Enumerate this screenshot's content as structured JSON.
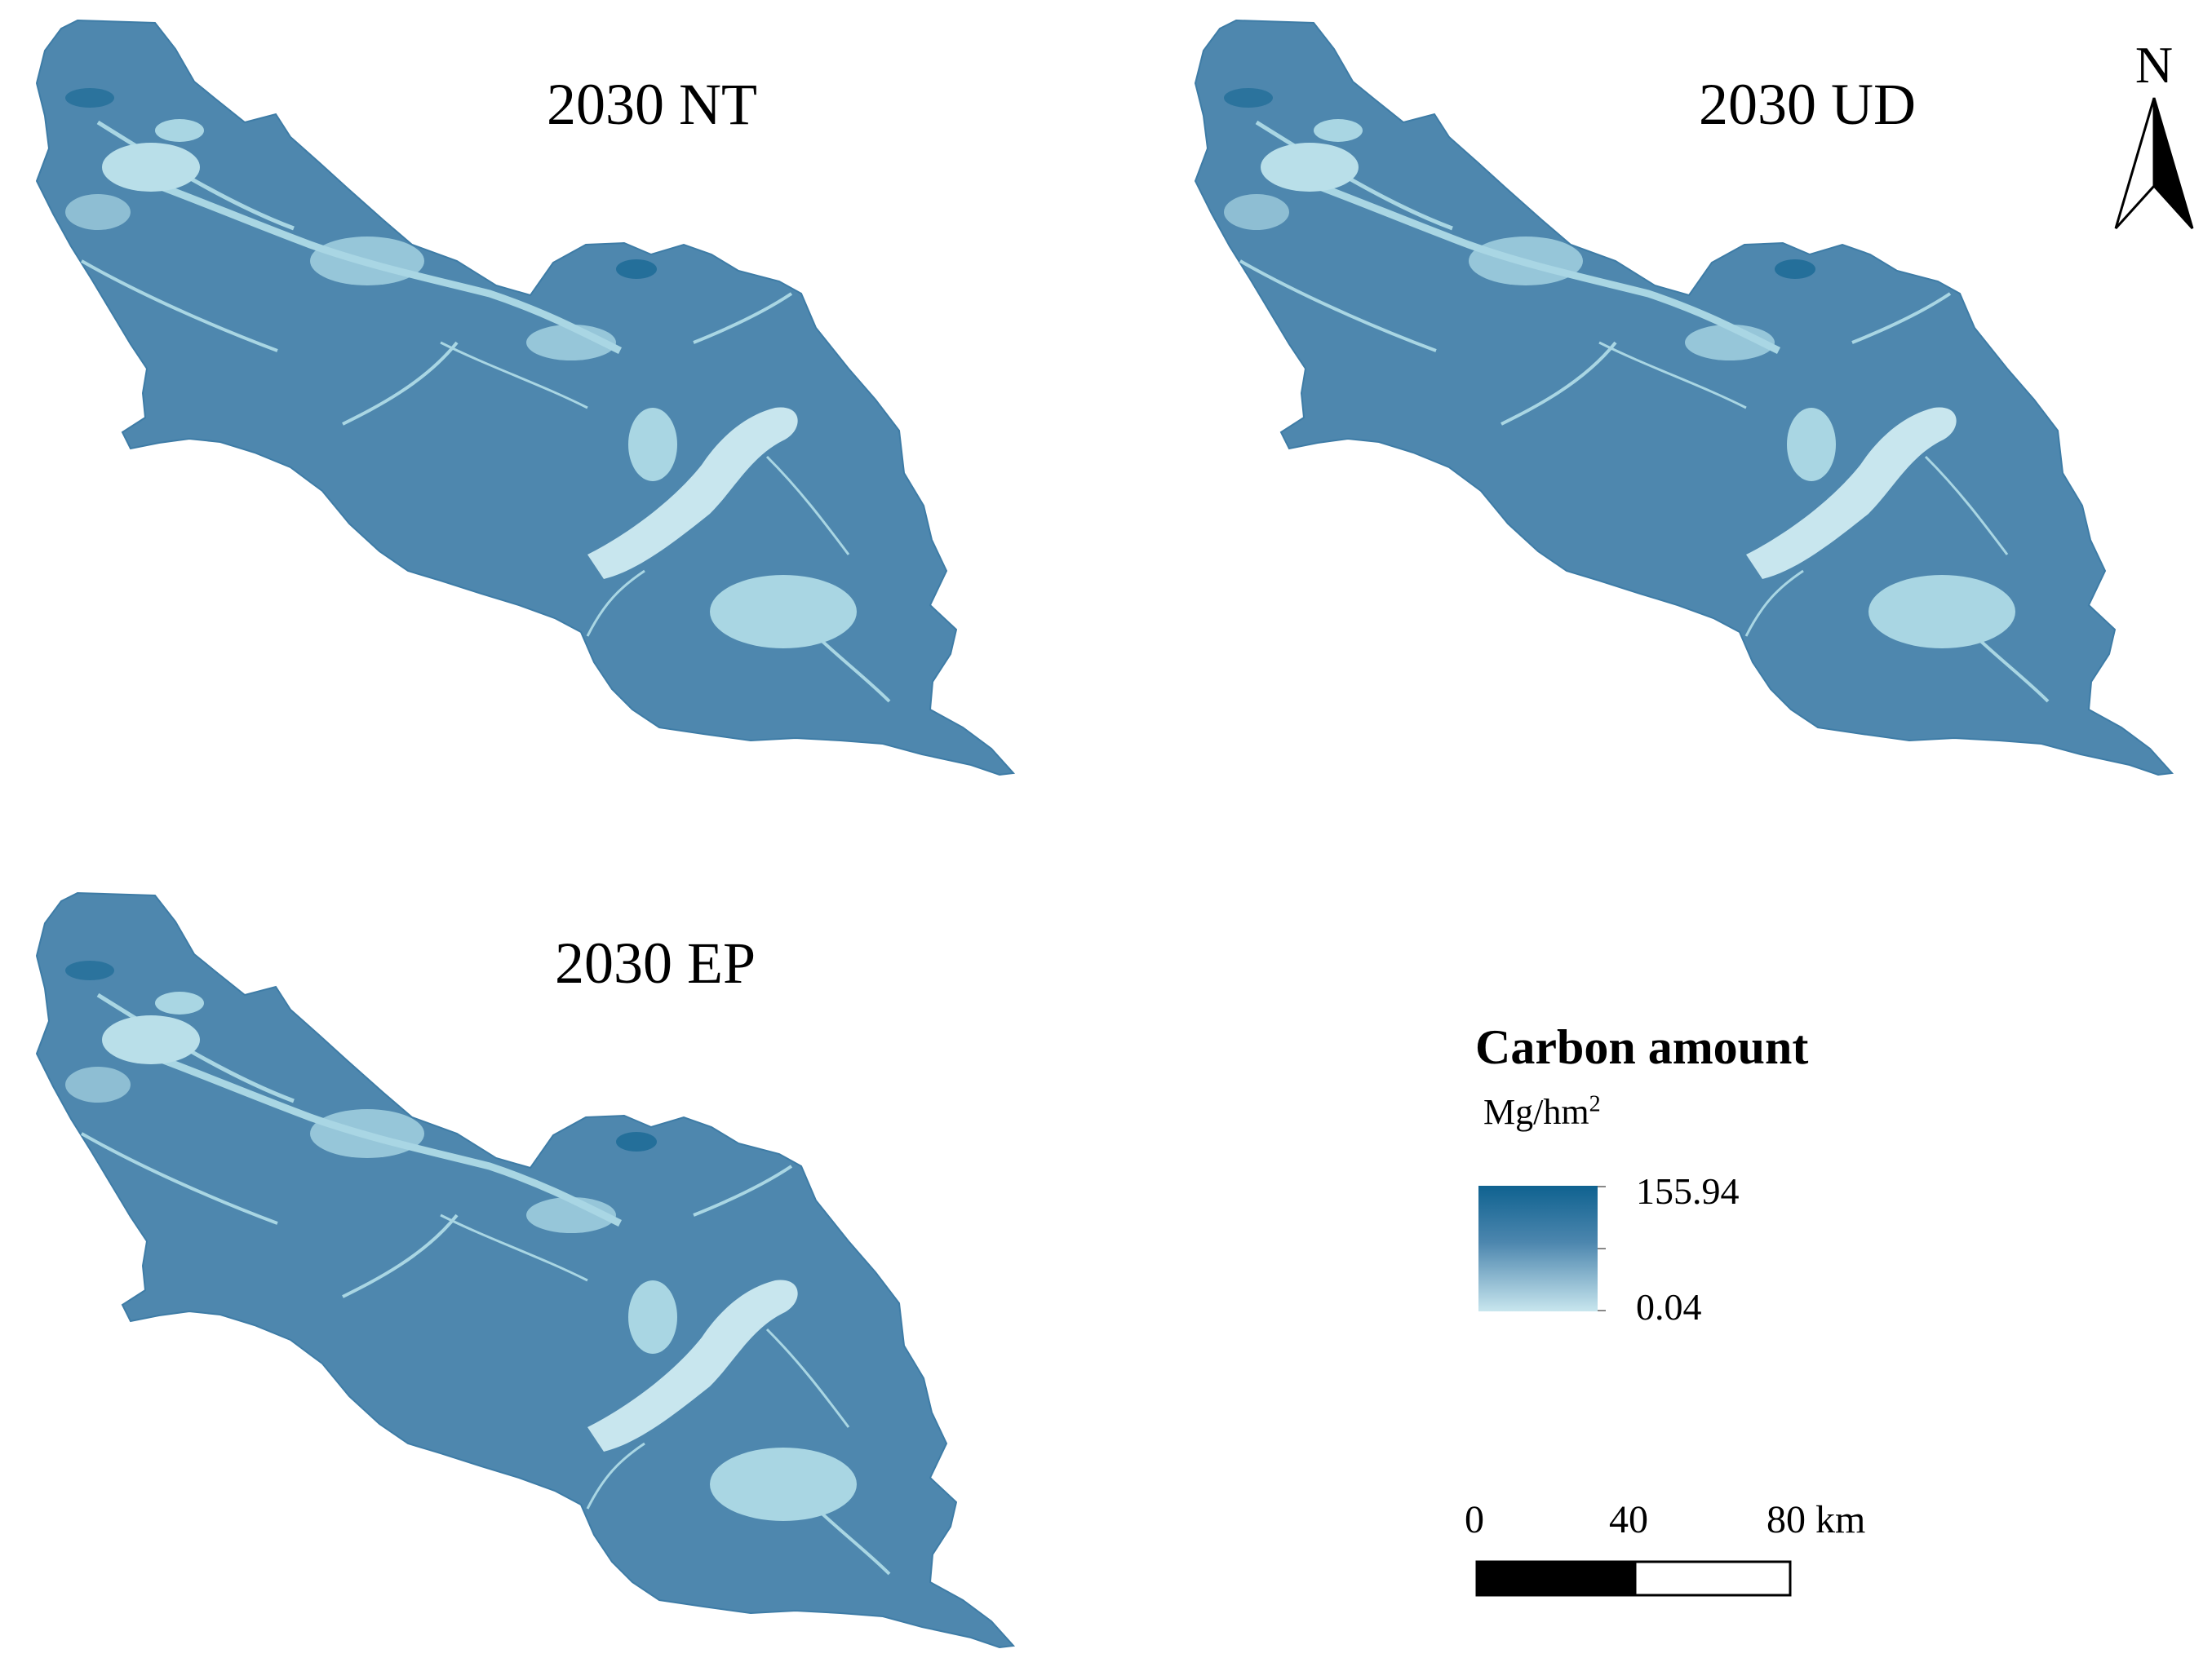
{
  "panels": [
    {
      "id": "nt",
      "title": "2030 NT"
    },
    {
      "id": "ud",
      "title": "2030 UD"
    },
    {
      "id": "ep",
      "title": "2030 EP"
    }
  ],
  "north_arrow": {
    "label": "N"
  },
  "legend": {
    "title": "Carbon amount",
    "unit_base": "Mg/hm",
    "unit_exponent": "2",
    "max_label": "155.94",
    "min_label": "0.04",
    "colors": {
      "high": "#0f6290",
      "mid": "#4c86ae",
      "low": "#c8e6ee"
    }
  },
  "scale_bar": {
    "labels": [
      "0",
      "40",
      "80 km"
    ]
  },
  "map_colors": {
    "base": "#4e87ae",
    "light": "#a9d6e3",
    "dark": "#1d6b96",
    "outline": "#3e7ca6"
  }
}
